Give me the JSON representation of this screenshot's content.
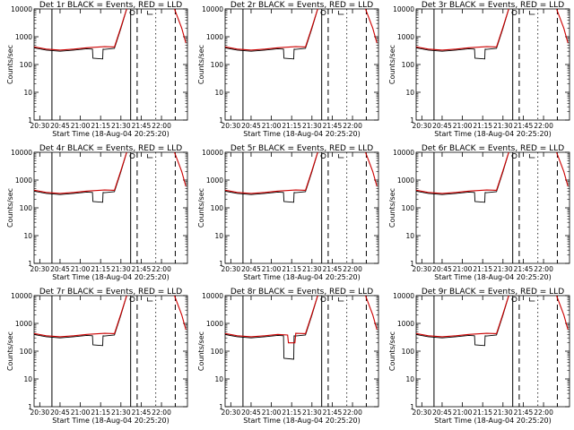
{
  "figure": {
    "background": "#ffffff",
    "colors": {
      "events": "#000000",
      "lld": "#cc0000"
    }
  },
  "chart_data": [
    {
      "type": "line",
      "title": "Det 1r BLACK = Events, RED = LLD",
      "xlabel": "Start Time (18-Aug-04 20:25:20)",
      "ylabel": "Counts/sec",
      "y_scale": "log",
      "ylim": [
        1,
        10000
      ],
      "x_ticks": [
        "20:30",
        "20:45",
        "21:00",
        "21:15",
        "21:30",
        "21:45",
        "22:00"
      ],
      "y_ticks": [
        "1",
        "10",
        "100",
        "1000",
        "10000"
      ],
      "events_dip": [
        21.15,
        21.28,
        170
      ],
      "lld_bump": null,
      "series": [
        {
          "color": "#000000",
          "x": [
            20.42,
            20.58,
            20.75,
            20.92,
            21.08,
            21.3,
            21.42,
            21.5,
            21.58,
            21.6
          ],
          "y": [
            400,
            330,
            300,
            330,
            370,
            350,
            380,
            2000,
            12000,
            12000
          ]
        },
        {
          "color": "#cc0000",
          "x": [
            20.42,
            20.58,
            20.75,
            20.92,
            21.08,
            21.3,
            21.42,
            21.5,
            21.58,
            21.6,
            22.15,
            22.25,
            22.3
          ],
          "y": [
            440,
            360,
            330,
            360,
            400,
            440,
            430,
            2200,
            12000,
            12000,
            12000,
            2000,
            600
          ]
        }
      ]
    },
    {
      "type": "line",
      "title": "Det 2r BLACK = Events, RED = LLD",
      "xlabel": "Start Time (18-Aug-04 20:25:20)",
      "ylabel": "Counts/sec",
      "y_scale": "log",
      "ylim": [
        1,
        10000
      ],
      "x_ticks": [
        "20:30",
        "20:45",
        "21:00",
        "21:15",
        "21:30",
        "21:45",
        "22:00"
      ],
      "y_ticks": [
        "1",
        "10",
        "100",
        "1000",
        "10000"
      ],
      "events_dip": [
        21.15,
        21.28,
        170
      ],
      "lld_bump": null,
      "series": [
        {
          "color": "#000000",
          "x": [
            20.42,
            20.58,
            20.75,
            20.92,
            21.08,
            21.3,
            21.42,
            21.5,
            21.58,
            21.6
          ],
          "y": [
            400,
            330,
            300,
            330,
            370,
            350,
            380,
            2000,
            12000,
            12000
          ]
        },
        {
          "color": "#cc0000",
          "x": [
            20.42,
            20.58,
            20.75,
            20.92,
            21.08,
            21.3,
            21.42,
            21.5,
            21.58,
            21.6,
            22.15,
            22.25,
            22.3
          ],
          "y": [
            440,
            360,
            330,
            360,
            400,
            440,
            430,
            2200,
            12000,
            12000,
            12000,
            2000,
            600
          ]
        }
      ]
    },
    {
      "type": "line",
      "title": "Det 3r BLACK = Events, RED = LLD",
      "xlabel": "Start Time (18-Aug-04 20:25:20)",
      "ylabel": "Counts/sec",
      "y_scale": "log",
      "ylim": [
        1,
        10000
      ],
      "x_ticks": [
        "20:30",
        "20:45",
        "21:00",
        "21:15",
        "21:30",
        "21:45",
        "22:00"
      ],
      "y_ticks": [
        "1",
        "10",
        "100",
        "1000",
        "10000"
      ],
      "events_dip": [
        21.15,
        21.28,
        170
      ],
      "lld_bump": null,
      "series": [
        {
          "color": "#000000",
          "x": [
            20.42,
            20.58,
            20.75,
            20.92,
            21.08,
            21.3,
            21.42,
            21.5,
            21.58,
            21.6
          ],
          "y": [
            400,
            330,
            300,
            330,
            370,
            350,
            380,
            2000,
            12000,
            12000
          ]
        },
        {
          "color": "#cc0000",
          "x": [
            20.42,
            20.58,
            20.75,
            20.92,
            21.08,
            21.3,
            21.42,
            21.5,
            21.58,
            21.6,
            22.15,
            22.25,
            22.3
          ],
          "y": [
            440,
            360,
            330,
            360,
            400,
            440,
            430,
            2200,
            12000,
            12000,
            12000,
            2000,
            600
          ]
        }
      ]
    },
    {
      "type": "line",
      "title": "Det 4r BLACK = Events, RED = LLD",
      "xlabel": "Start Time (18-Aug-04 20:25:20)",
      "ylabel": "Counts/sec",
      "y_scale": "log",
      "ylim": [
        1,
        10000
      ],
      "x_ticks": [
        "20:30",
        "20:45",
        "21:00",
        "21:15",
        "21:30",
        "21:45",
        "22:00"
      ],
      "y_ticks": [
        "1",
        "10",
        "100",
        "1000",
        "10000"
      ],
      "events_dip": [
        21.15,
        21.28,
        170
      ],
      "lld_bump": null,
      "series": [
        {
          "color": "#000000",
          "x": [
            20.42,
            20.58,
            20.75,
            20.92,
            21.08,
            21.3,
            21.42,
            21.5,
            21.58,
            21.6
          ],
          "y": [
            400,
            330,
            300,
            330,
            370,
            350,
            380,
            2000,
            12000,
            12000
          ]
        },
        {
          "color": "#cc0000",
          "x": [
            20.42,
            20.58,
            20.75,
            20.92,
            21.08,
            21.3,
            21.42,
            21.5,
            21.58,
            21.6,
            22.15,
            22.25,
            22.3
          ],
          "y": [
            440,
            360,
            330,
            360,
            400,
            440,
            430,
            2200,
            12000,
            12000,
            12000,
            2000,
            600
          ]
        }
      ]
    },
    {
      "type": "line",
      "title": "Det 5r BLACK = Events, RED = LLD",
      "xlabel": "Start Time (18-Aug-04 20:25:20)",
      "ylabel": "Counts/sec",
      "y_scale": "log",
      "ylim": [
        1,
        10000
      ],
      "x_ticks": [
        "20:30",
        "20:45",
        "21:00",
        "21:15",
        "21:30",
        "21:45",
        "22:00"
      ],
      "y_ticks": [
        "1",
        "10",
        "100",
        "1000",
        "10000"
      ],
      "events_dip": [
        21.15,
        21.28,
        170
      ],
      "lld_bump": null,
      "series": [
        {
          "color": "#000000",
          "x": [
            20.42,
            20.58,
            20.75,
            20.92,
            21.08,
            21.3,
            21.42,
            21.5,
            21.58,
            21.6
          ],
          "y": [
            400,
            330,
            300,
            330,
            370,
            350,
            380,
            2000,
            12000,
            12000
          ]
        },
        {
          "color": "#cc0000",
          "x": [
            20.42,
            20.58,
            20.75,
            20.92,
            21.08,
            21.3,
            21.42,
            21.5,
            21.58,
            21.6,
            22.15,
            22.25,
            22.3
          ],
          "y": [
            440,
            360,
            330,
            360,
            400,
            440,
            430,
            2200,
            12000,
            12000,
            12000,
            2000,
            600
          ]
        }
      ]
    },
    {
      "type": "line",
      "title": "Det 6r BLACK = Events, RED = LLD",
      "xlabel": "Start Time (18-Aug-04 20:25:20)",
      "ylabel": "Counts/sec",
      "y_scale": "log",
      "ylim": [
        1,
        10000
      ],
      "x_ticks": [
        "20:30",
        "20:45",
        "21:00",
        "21:15",
        "21:30",
        "21:45",
        "22:00"
      ],
      "y_ticks": [
        "1",
        "10",
        "100",
        "1000",
        "10000"
      ],
      "events_dip": [
        21.15,
        21.28,
        170
      ],
      "lld_bump": null,
      "series": [
        {
          "color": "#000000",
          "x": [
            20.42,
            20.58,
            20.75,
            20.92,
            21.08,
            21.3,
            21.42,
            21.5,
            21.58,
            21.6
          ],
          "y": [
            400,
            330,
            300,
            330,
            370,
            350,
            380,
            2000,
            12000,
            12000
          ]
        },
        {
          "color": "#cc0000",
          "x": [
            20.42,
            20.58,
            20.75,
            20.92,
            21.08,
            21.3,
            21.42,
            21.5,
            21.58,
            21.6,
            22.15,
            22.25,
            22.3
          ],
          "y": [
            440,
            360,
            330,
            360,
            400,
            440,
            430,
            2200,
            12000,
            12000,
            12000,
            2000,
            600
          ]
        }
      ]
    },
    {
      "type": "line",
      "title": "Det 7r BLACK = Events, RED = LLD",
      "xlabel": "Start Time (18-Aug-04 20:25:20)",
      "ylabel": "Counts/sec",
      "y_scale": "log",
      "ylim": [
        1,
        10000
      ],
      "x_ticks": [
        "20:30",
        "20:45",
        "21:00",
        "21:15",
        "21:30",
        "21:45",
        "22:00"
      ],
      "y_ticks": [
        "1",
        "10",
        "100",
        "1000",
        "10000"
      ],
      "events_dip": [
        21.15,
        21.28,
        170
      ],
      "lld_bump": null,
      "series": [
        {
          "color": "#000000",
          "x": [
            20.42,
            20.58,
            20.75,
            20.92,
            21.08,
            21.3,
            21.42,
            21.5,
            21.58,
            21.6
          ],
          "y": [
            400,
            330,
            300,
            330,
            370,
            350,
            380,
            2000,
            12000,
            12000
          ]
        },
        {
          "color": "#cc0000",
          "x": [
            20.42,
            20.58,
            20.75,
            20.92,
            21.08,
            21.3,
            21.42,
            21.5,
            21.58,
            21.6,
            22.15,
            22.25,
            22.3
          ],
          "y": [
            440,
            360,
            330,
            360,
            400,
            440,
            430,
            2200,
            12000,
            12000,
            12000,
            2000,
            600
          ]
        }
      ]
    },
    {
      "type": "line",
      "title": "Det 8r BLACK = Events, RED = LLD",
      "xlabel": "Start Time (18-Aug-04 20:25:20)",
      "ylabel": "Counts/sec",
      "y_scale": "log",
      "ylim": [
        1,
        10000
      ],
      "x_ticks": [
        "20:30",
        "20:45",
        "21:00",
        "21:15",
        "21:30",
        "21:45",
        "22:00"
      ],
      "y_ticks": [
        "1",
        "10",
        "100",
        "1000",
        "10000"
      ],
      "events_dip": [
        21.15,
        21.28,
        55
      ],
      "lld_bump": [
        21.2,
        21.3,
        200
      ],
      "series": [
        {
          "color": "#000000",
          "x": [
            20.42,
            20.58,
            20.75,
            20.92,
            21.08,
            21.3,
            21.42,
            21.5,
            21.58,
            21.6
          ],
          "y": [
            400,
            330,
            300,
            330,
            370,
            350,
            380,
            2000,
            12000,
            12000
          ]
        },
        {
          "color": "#cc0000",
          "x": [
            20.42,
            20.58,
            20.75,
            20.92,
            21.08,
            21.3,
            21.42,
            21.5,
            21.58,
            21.6,
            22.15,
            22.25,
            22.3
          ],
          "y": [
            440,
            360,
            330,
            360,
            400,
            440,
            430,
            2200,
            12000,
            12000,
            12000,
            2000,
            600
          ]
        }
      ]
    },
    {
      "type": "line",
      "title": "Det 9r BLACK = Events, RED = LLD",
      "xlabel": "Start Time (18-Aug-04 20:25:20)",
      "ylabel": "Counts/sec",
      "y_scale": "log",
      "ylim": [
        1,
        10000
      ],
      "x_ticks": [
        "20:30",
        "20:45",
        "21:00",
        "21:15",
        "21:30",
        "21:45",
        "22:00"
      ],
      "y_ticks": [
        "1",
        "10",
        "100",
        "1000",
        "10000"
      ],
      "events_dip": [
        21.15,
        21.28,
        170
      ],
      "lld_bump": null,
      "series": [
        {
          "color": "#000000",
          "x": [
            20.42,
            20.58,
            20.75,
            20.92,
            21.08,
            21.3,
            21.42,
            21.5,
            21.58,
            21.6
          ],
          "y": [
            400,
            330,
            300,
            330,
            370,
            350,
            380,
            2000,
            12000,
            12000
          ]
        },
        {
          "color": "#cc0000",
          "x": [
            20.42,
            20.58,
            20.75,
            20.92,
            21.08,
            21.3,
            21.42,
            21.5,
            21.58,
            21.6,
            22.15,
            22.25,
            22.3
          ],
          "y": [
            440,
            360,
            330,
            360,
            400,
            440,
            430,
            2200,
            12000,
            12000,
            12000,
            2000,
            600
          ]
        }
      ]
    }
  ]
}
